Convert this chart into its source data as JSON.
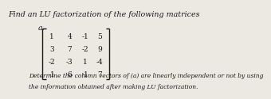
{
  "title": "Find an LU factorization of the following matrices",
  "label_a": "a.",
  "matrix": [
    [
      "1",
      "4",
      "-1",
      "5"
    ],
    [
      "3",
      "7",
      "-2",
      "9"
    ],
    [
      "-2",
      "-3",
      "1",
      "-4"
    ],
    [
      "-1",
      "6",
      "-1",
      "7"
    ]
  ],
  "footnote_line1": "Determine the column vectors of (a) are linearly independent or not by using",
  "footnote_line2": "the information obtained after making LU factorization.",
  "bg_color": "#ece9e3",
  "text_color": "#1a1a1a",
  "title_fontsize": 6.8,
  "matrix_fontsize": 6.5,
  "footnote_fontsize": 5.4,
  "label_fontsize": 6.8
}
